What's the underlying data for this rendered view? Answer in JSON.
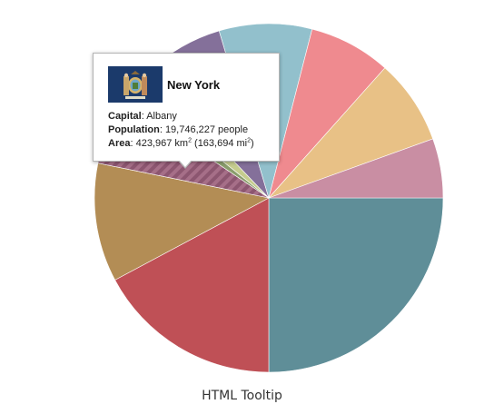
{
  "chart_data": {
    "type": "pie",
    "title": "HTML Tooltip",
    "slices": [
      {
        "value": 25.0,
        "color": "#5f8e98"
      },
      {
        "value": 17.2,
        "color": "#bf5056"
      },
      {
        "value": 11.0,
        "color": "#b38d55"
      },
      {
        "value": 6.2,
        "color": "#a66f88",
        "pattern": "stripes",
        "highlighted": true
      },
      {
        "value": 1.3,
        "color": "#8a9d6c"
      },
      {
        "value": 2.2,
        "color": "#c5cc8e"
      },
      {
        "value": 7.5,
        "color": "#84709a"
      },
      {
        "value": 8.6,
        "color": "#92c0cc"
      },
      {
        "value": 7.6,
        "color": "#ef8a8f"
      },
      {
        "value": 7.9,
        "color": "#e8c186"
      },
      {
        "value": 5.5,
        "color": "#c98ea3"
      }
    ]
  },
  "tooltip": {
    "state": "New York",
    "capital_label": "Capital",
    "capital_value": ": Albany",
    "population_label": "Population",
    "population_value": ": 19,746,227 people",
    "area_label": "Area",
    "area_value": ": 423,967 km",
    "area_sup": "2",
    "area_value2": " (163,694 mi",
    "area_sup2": "2",
    "area_close": ")"
  }
}
